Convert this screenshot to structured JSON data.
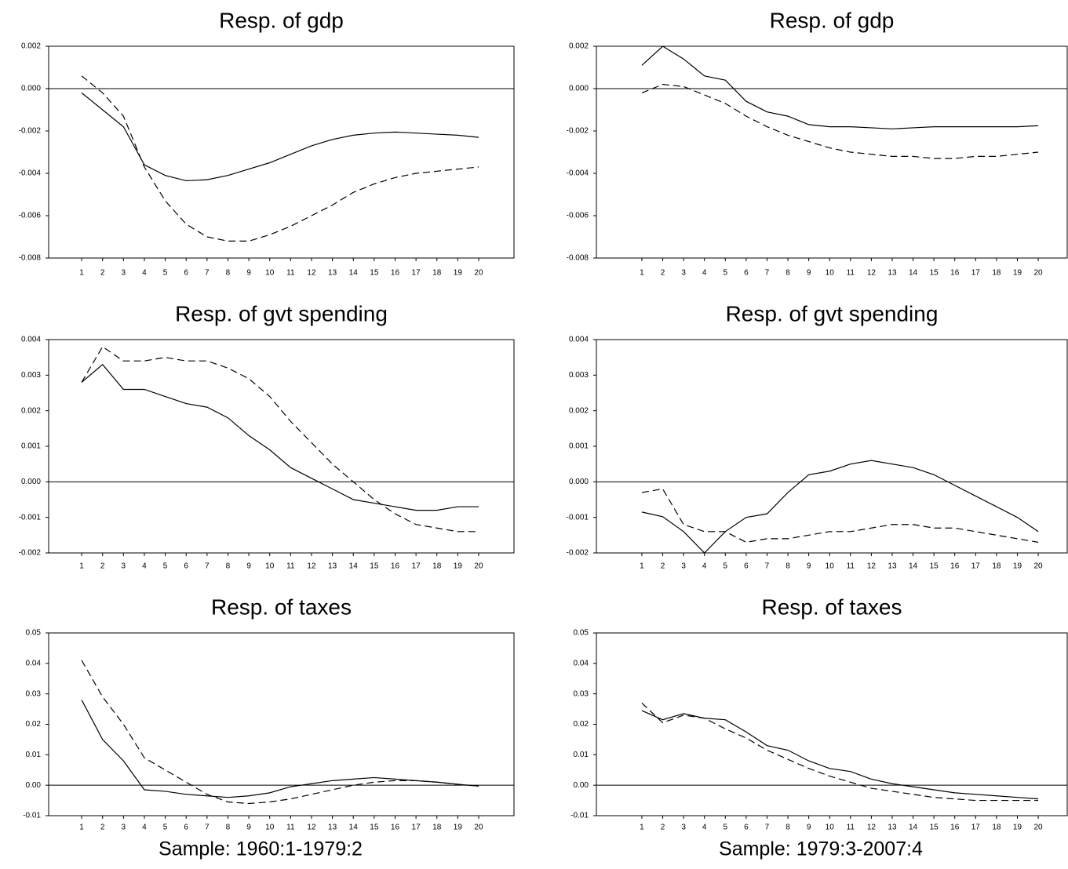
{
  "chart_data": [
    {
      "type": "line",
      "title": "Resp. of gdp",
      "x": [
        1,
        2,
        3,
        4,
        5,
        6,
        7,
        8,
        9,
        10,
        11,
        12,
        13,
        14,
        15,
        16,
        17,
        18,
        19,
        20
      ],
      "xlim": [
        -0.58,
        21.69
      ],
      "xticks": [
        1,
        2,
        3,
        4,
        5,
        6,
        7,
        8,
        9,
        10,
        11,
        12,
        13,
        14,
        15,
        16,
        17,
        18,
        19,
        20
      ],
      "ylim": [
        -0.008,
        0.002
      ],
      "yticks": [
        -0.008,
        -0.006,
        -0.004,
        -0.002,
        {
          "value": 0,
          "label": "0.000"
        },
        0.002
      ],
      "series": [
        {
          "color": "#000000",
          "dash": false,
          "values": [
            -0.0002,
            -0.001,
            -0.0018,
            -0.0036,
            -0.0041,
            -0.00435,
            -0.0043,
            -0.0041,
            -0.0038,
            -0.0035,
            -0.0031,
            -0.0027,
            -0.0024,
            -0.0022,
            -0.0021,
            -0.00205,
            -0.0021,
            -0.00215,
            -0.0022,
            -0.0023
          ]
        },
        {
          "color": "#000000",
          "dash": true,
          "values": [
            0.0006,
            -0.0002,
            -0.0013,
            -0.0037,
            -0.0053,
            -0.0064,
            -0.007,
            -0.0072,
            -0.0072,
            -0.0069,
            -0.0065,
            -0.006,
            -0.0055,
            -0.0049,
            -0.0045,
            -0.0042,
            -0.004,
            -0.0039,
            -0.0038,
            -0.0037
          ]
        }
      ]
    },
    {
      "type": "line",
      "title": "Resp. of gdp",
      "x": [
        1,
        2,
        3,
        4,
        5,
        6,
        7,
        8,
        9,
        10,
        11,
        12,
        13,
        14,
        15,
        16,
        17,
        18,
        19,
        20
      ],
      "xlim": [
        -1.18,
        21.39
      ],
      "xticks": [
        1,
        2,
        3,
        4,
        5,
        6,
        7,
        8,
        9,
        10,
        11,
        12,
        13,
        14,
        15,
        16,
        17,
        18,
        19,
        20
      ],
      "ylim": [
        -0.008,
        0.002
      ],
      "yticks": [
        -0.008,
        -0.006,
        -0.004,
        -0.002,
        {
          "value": 0,
          "label": "0.000"
        },
        0.002
      ],
      "series": [
        {
          "color": "#000000",
          "dash": false,
          "values": [
            0.0011,
            0.002,
            0.0014,
            0.0006,
            0.0004,
            -0.0006,
            -0.0011,
            -0.0013,
            -0.0017,
            -0.0018,
            -0.0018,
            -0.00185,
            -0.0019,
            -0.00185,
            -0.0018,
            -0.0018,
            -0.0018,
            -0.0018,
            -0.0018,
            -0.00175
          ]
        },
        {
          "color": "#000000",
          "dash": true,
          "values": [
            -0.0002,
            0.0002,
            0.0001,
            -0.0003,
            -0.0007,
            -0.0013,
            -0.0018,
            -0.0022,
            -0.0025,
            -0.0028,
            -0.003,
            -0.0031,
            -0.0032,
            -0.0032,
            -0.0033,
            -0.0033,
            -0.0032,
            -0.0032,
            -0.0031,
            -0.003
          ]
        }
      ]
    },
    {
      "type": "line",
      "title": "Resp. of gvt spending",
      "x": [
        1,
        2,
        3,
        4,
        5,
        6,
        7,
        8,
        9,
        10,
        11,
        12,
        13,
        14,
        15,
        16,
        17,
        18,
        19,
        20
      ],
      "xlim": [
        -0.58,
        21.69
      ],
      "xticks": [
        1,
        2,
        3,
        4,
        5,
        6,
        7,
        8,
        9,
        10,
        11,
        12,
        13,
        14,
        15,
        16,
        17,
        18,
        19,
        20
      ],
      "ylim": [
        -0.002,
        0.004
      ],
      "yticks": [
        -0.002,
        -0.001,
        {
          "value": 0,
          "label": "0.000"
        },
        0.001,
        0.002,
        0.003,
        0.004
      ],
      "series": [
        {
          "color": "#000000",
          "dash": false,
          "values": [
            0.0028,
            0.0033,
            0.0026,
            0.0026,
            0.0024,
            0.0022,
            0.0021,
            0.0018,
            0.0013,
            0.0009,
            0.0004,
            0.0001,
            -0.0002,
            -0.0005,
            -0.0006,
            -0.0007,
            -0.0008,
            -0.0008,
            -0.0007,
            -0.0007
          ]
        },
        {
          "color": "#000000",
          "dash": true,
          "values": [
            0.0028,
            0.0038,
            0.0034,
            0.0034,
            0.0035,
            0.0034,
            0.0034,
            0.0032,
            0.0029,
            0.0024,
            0.0017,
            0.0011,
            0.0005,
            0.0,
            -0.0005,
            -0.0009,
            -0.0012,
            -0.0013,
            -0.0014,
            -0.0014
          ]
        }
      ]
    },
    {
      "type": "line",
      "title": "Resp. of gvt spending",
      "x": [
        1,
        2,
        3,
        4,
        5,
        6,
        7,
        8,
        9,
        10,
        11,
        12,
        13,
        14,
        15,
        16,
        17,
        18,
        19,
        20
      ],
      "xlim": [
        -1.18,
        21.39
      ],
      "xticks": [
        1,
        2,
        3,
        4,
        5,
        6,
        7,
        8,
        9,
        10,
        11,
        12,
        13,
        14,
        15,
        16,
        17,
        18,
        19,
        20
      ],
      "ylim": [
        -0.002,
        0.004
      ],
      "yticks": [
        -0.002,
        -0.001,
        {
          "value": 0,
          "label": "0.000"
        },
        0.001,
        0.002,
        0.003,
        0.004
      ],
      "series": [
        {
          "color": "#000000",
          "dash": false,
          "values": [
            -0.00085,
            -0.00098,
            -0.0014,
            -0.002,
            -0.0014,
            -0.001,
            -0.0009,
            -0.0003,
            0.0002,
            0.0003,
            0.0005,
            0.0006,
            0.0005,
            0.0004,
            0.0002,
            -0.0001,
            -0.0004,
            -0.0007,
            -0.001,
            -0.0014
          ]
        },
        {
          "color": "#000000",
          "dash": true,
          "values": [
            -0.0003,
            -0.0002,
            -0.0012,
            -0.0014,
            -0.0014,
            -0.0017,
            -0.0016,
            -0.0016,
            -0.0015,
            -0.0014,
            -0.0014,
            -0.0013,
            -0.0012,
            -0.0012,
            -0.0013,
            -0.0013,
            -0.0014,
            -0.0015,
            -0.0016,
            -0.0017
          ]
        }
      ]
    },
    {
      "type": "line",
      "title": "Resp. of taxes",
      "x": [
        1,
        2,
        3,
        4,
        5,
        6,
        7,
        8,
        9,
        10,
        11,
        12,
        13,
        14,
        15,
        16,
        17,
        18,
        19,
        20
      ],
      "xlim": [
        -0.58,
        21.69
      ],
      "xticks": [
        1,
        2,
        3,
        4,
        5,
        6,
        7,
        8,
        9,
        10,
        11,
        12,
        13,
        14,
        15,
        16,
        17,
        18,
        19,
        20
      ],
      "ylim": [
        -0.01,
        0.05
      ],
      "yticks": [
        -0.01,
        {
          "value": 0,
          "label": "0.00"
        },
        0.01,
        0.02,
        0.03,
        0.04,
        0.05
      ],
      "series": [
        {
          "color": "#000000",
          "dash": false,
          "values": [
            0.028,
            0.015,
            0.008,
            -0.0015,
            -0.002,
            -0.003,
            -0.0035,
            -0.004,
            -0.0035,
            -0.0025,
            -0.0005,
            0.0005,
            0.0015,
            0.002,
            0.0025,
            0.002,
            0.0015,
            0.001,
            0.0003,
            -0.0003
          ]
        },
        {
          "color": "#000000",
          "dash": true,
          "values": [
            0.041,
            0.029,
            0.02,
            0.009,
            0.005,
            0.001,
            -0.003,
            -0.0055,
            -0.006,
            -0.0055,
            -0.0045,
            -0.003,
            -0.0015,
            0.0,
            0.001,
            0.0015,
            0.0015,
            0.001,
            0.0003,
            -0.0003
          ]
        }
      ]
    },
    {
      "type": "line",
      "title": "Resp. of taxes",
      "x": [
        1,
        2,
        3,
        4,
        5,
        6,
        7,
        8,
        9,
        10,
        11,
        12,
        13,
        14,
        15,
        16,
        17,
        18,
        19,
        20
      ],
      "xlim": [
        -1.18,
        21.39
      ],
      "xticks": [
        1,
        2,
        3,
        4,
        5,
        6,
        7,
        8,
        9,
        10,
        11,
        12,
        13,
        14,
        15,
        16,
        17,
        18,
        19,
        20
      ],
      "ylim": [
        -0.01,
        0.05
      ],
      "yticks": [
        -0.01,
        {
          "value": 0,
          "label": "0.00"
        },
        0.01,
        0.02,
        0.03,
        0.04,
        0.05
      ],
      "series": [
        {
          "color": "#000000",
          "dash": false,
          "values": [
            0.0245,
            0.0215,
            0.0235,
            0.022,
            0.0215,
            0.0175,
            0.013,
            0.0115,
            0.008,
            0.0055,
            0.0045,
            0.002,
            0.0005,
            -0.0005,
            -0.0015,
            -0.0025,
            -0.003,
            -0.0035,
            -0.004,
            -0.0045
          ]
        },
        {
          "color": "#000000",
          "dash": true,
          "values": [
            0.027,
            0.0205,
            0.023,
            0.022,
            0.0185,
            0.0155,
            0.0115,
            0.0085,
            0.0055,
            0.003,
            0.001,
            -0.001,
            -0.002,
            -0.003,
            -0.004,
            -0.0045,
            -0.005,
            -0.005,
            -0.005,
            -0.005
          ]
        }
      ]
    }
  ],
  "captions": [
    "Sample: 1960:1-1979:2",
    "Sample: 1979:3-2007:4"
  ]
}
